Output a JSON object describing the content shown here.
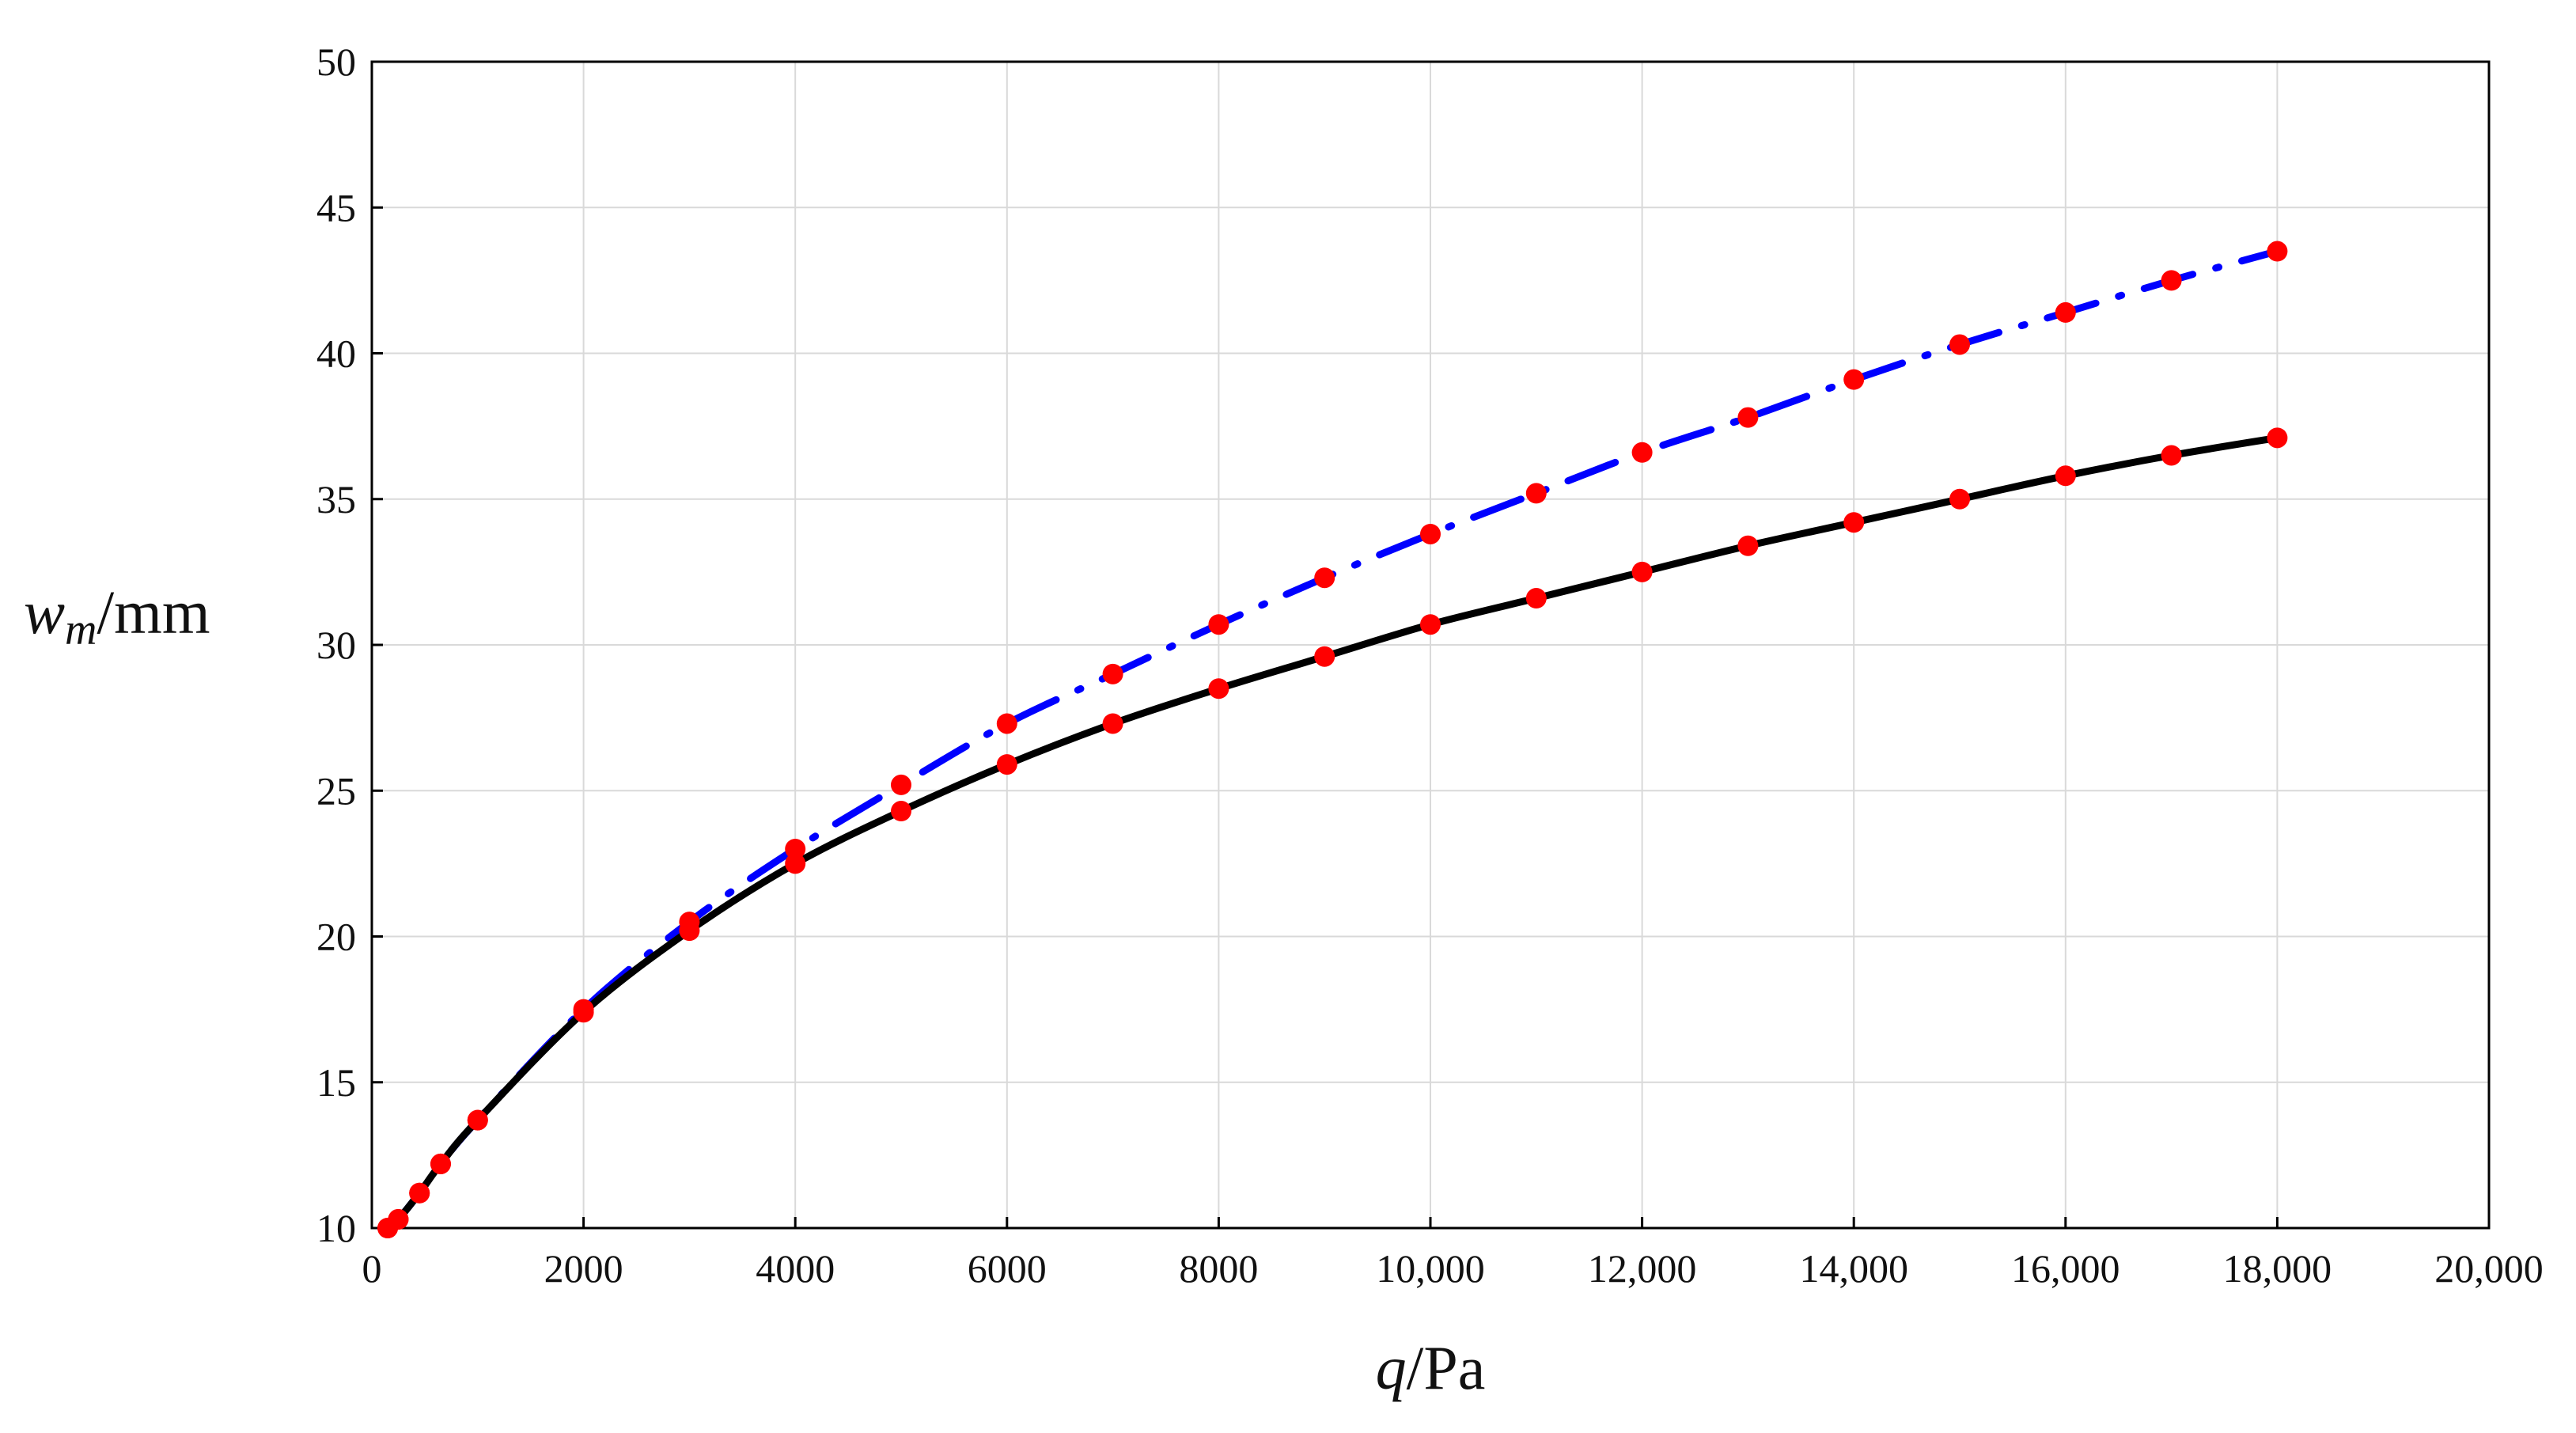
{
  "chart_data": {
    "type": "line",
    "xlabel": {
      "var": "q",
      "unit": "/Pa"
    },
    "ylabel": {
      "var": "w",
      "sub": "m",
      "unit": "/mm"
    },
    "xlim": [
      0,
      20000
    ],
    "ylim": [
      10,
      50
    ],
    "xticks": [
      0,
      2000,
      4000,
      6000,
      8000,
      10000,
      12000,
      14000,
      16000,
      18000,
      20000
    ],
    "xtick_labels": [
      "0",
      "2000",
      "4000",
      "6000",
      "8000",
      "10,000",
      "12,000",
      "14,000",
      "16,000",
      "18,000",
      "20,000"
    ],
    "yticks": [
      10,
      15,
      20,
      25,
      30,
      35,
      40,
      45,
      50
    ],
    "ytick_labels": [
      "10",
      "15",
      "20",
      "25",
      "30",
      "35",
      "40",
      "45",
      "50"
    ],
    "grid": true,
    "legend": "none",
    "series": [
      {
        "style": "solid",
        "color": "#000000",
        "marker_color": "#ff0000",
        "x": [
          150,
          250,
          450,
          650,
          1000,
          2000,
          3000,
          4000,
          5000,
          6000,
          7000,
          8000,
          9000,
          10000,
          11000,
          12000,
          13000,
          14000,
          15000,
          16000,
          17000,
          18000
        ],
        "y": [
          10.0,
          10.3,
          11.2,
          12.2,
          13.7,
          17.4,
          20.2,
          22.5,
          24.3,
          25.9,
          27.3,
          28.5,
          29.6,
          30.7,
          31.6,
          32.5,
          33.4,
          34.2,
          35.0,
          35.8,
          36.5,
          37.1
        ]
      },
      {
        "style": "dash-dot",
        "color": "#0000ff",
        "marker_color": "#ff0000",
        "x": [
          150,
          250,
          450,
          650,
          1000,
          2000,
          3000,
          4000,
          5000,
          6000,
          7000,
          8000,
          9000,
          10000,
          11000,
          12000,
          13000,
          14000,
          15000,
          16000,
          17000,
          18000
        ],
        "y": [
          10.0,
          10.3,
          11.2,
          12.2,
          13.7,
          17.5,
          20.5,
          23.0,
          25.2,
          27.3,
          29.0,
          30.7,
          32.3,
          33.8,
          35.2,
          36.6,
          37.8,
          39.1,
          40.3,
          41.4,
          42.5,
          43.5
        ]
      }
    ]
  }
}
